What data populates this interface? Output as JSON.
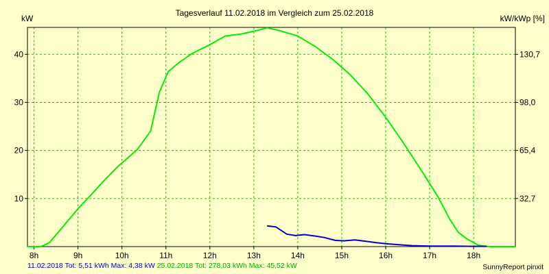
{
  "chart_data": {
    "type": "line",
    "title": "Tagesverlauf 11.02.2018 im Vergleich zum 25.02.2018",
    "ylabel_left": "kW",
    "ylabel_right": "kW/kWp [%]",
    "xlim": [
      7.85,
      18.95
    ],
    "ylim": [
      0,
      45.6
    ],
    "x_ticks": [
      8,
      9,
      10,
      11,
      12,
      13,
      14,
      15,
      16,
      17,
      18
    ],
    "x_tick_labels": [
      "8h",
      "9h",
      "10h",
      "11h",
      "12h",
      "13h",
      "14h",
      "15h",
      "16h",
      "17h",
      "18h"
    ],
    "y_ticks": [
      10,
      20,
      30,
      40
    ],
    "y_tick_labels": [
      "10",
      "20",
      "30",
      "40"
    ],
    "y_right_tick_labels": [
      "32,7",
      "65,4",
      "98,0",
      "130,7"
    ],
    "grid": true,
    "series": [
      {
        "name": "25.02.2018",
        "color": "#00ee00",
        "points": [
          [
            7.85,
            0
          ],
          [
            8.15,
            0
          ],
          [
            8.35,
            0.8
          ],
          [
            8.7,
            4.6
          ],
          [
            9.0,
            7.9
          ],
          [
            9.3,
            10.8
          ],
          [
            9.6,
            13.8
          ],
          [
            9.9,
            16.6
          ],
          [
            10.35,
            20.2
          ],
          [
            10.65,
            24.0
          ],
          [
            10.85,
            32.1
          ],
          [
            11.05,
            36.4
          ],
          [
            11.3,
            38.3
          ],
          [
            11.6,
            40.2
          ],
          [
            12.0,
            42.0
          ],
          [
            12.35,
            43.8
          ],
          [
            12.7,
            44.2
          ],
          [
            13.0,
            44.8
          ],
          [
            13.3,
            45.5
          ],
          [
            13.6,
            44.9
          ],
          [
            14.0,
            43.8
          ],
          [
            14.4,
            41.6
          ],
          [
            14.8,
            38.9
          ],
          [
            15.2,
            35.7
          ],
          [
            15.6,
            31.7
          ],
          [
            16.0,
            26.9
          ],
          [
            16.4,
            21.6
          ],
          [
            16.8,
            16.0
          ],
          [
            17.2,
            10.2
          ],
          [
            17.45,
            5.8
          ],
          [
            17.65,
            3.0
          ],
          [
            17.85,
            1.6
          ],
          [
            18.1,
            0.3
          ],
          [
            18.35,
            0
          ],
          [
            18.95,
            0
          ]
        ]
      },
      {
        "name": "11.02.2018",
        "color": "#0000cc",
        "points": [
          [
            13.3,
            4.3
          ],
          [
            13.5,
            4.1
          ],
          [
            13.75,
            2.6
          ],
          [
            13.95,
            2.3
          ],
          [
            14.15,
            2.5
          ],
          [
            14.4,
            2.2
          ],
          [
            14.6,
            1.9
          ],
          [
            14.85,
            1.3
          ],
          [
            15.05,
            1.2
          ],
          [
            15.3,
            1.4
          ],
          [
            15.55,
            1.1
          ],
          [
            15.8,
            0.8
          ],
          [
            16.0,
            0.6
          ],
          [
            16.3,
            0.4
          ],
          [
            16.6,
            0.2
          ],
          [
            17.0,
            0.1
          ],
          [
            17.5,
            0.1
          ],
          [
            18.0,
            0.05
          ],
          [
            18.3,
            0.05
          ]
        ]
      }
    ]
  },
  "footer": {
    "blue_text": "11.02.2018 Tot: 5,51 kWh Max: 4,38 kW",
    "green_text": "25.02.2018 Tot: 278,03 kWh Max: 45,52 kW",
    "brand": "SunnyReport pinxit"
  }
}
